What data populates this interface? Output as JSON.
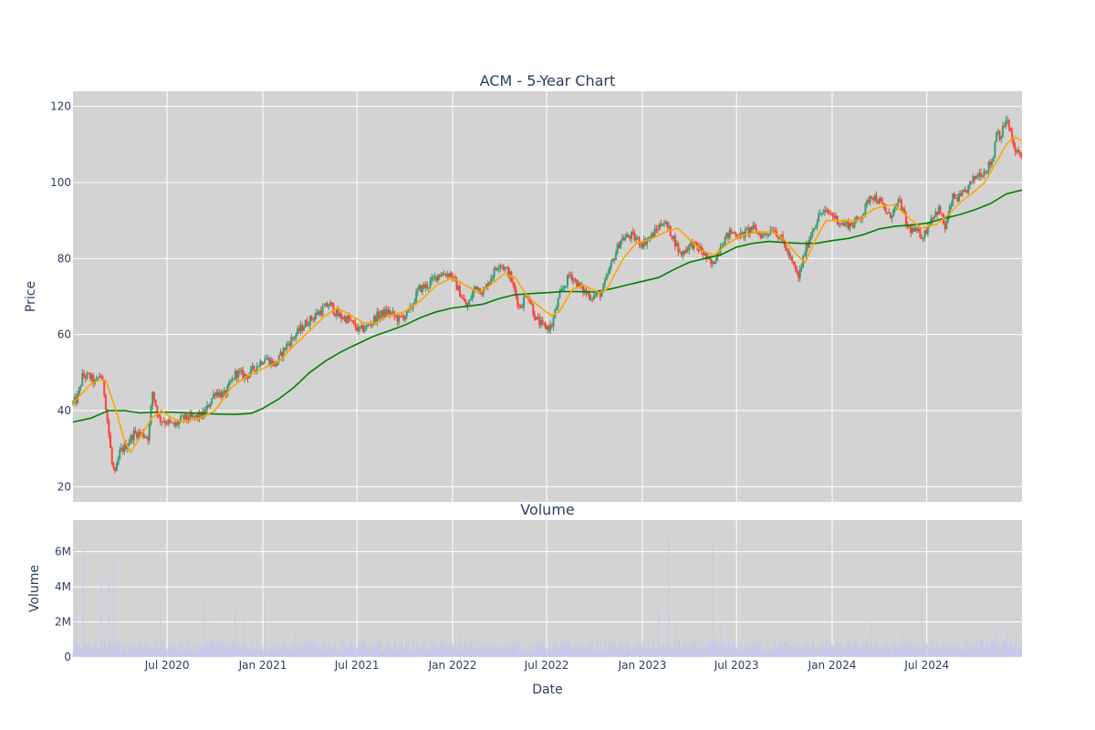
{
  "chart_data": [
    {
      "type": "candlestick",
      "title": "ACM - 5-Year Chart",
      "ylabel": "Price",
      "ylim": [
        16,
        124
      ],
      "yticks": [
        20,
        40,
        60,
        80,
        100,
        120
      ],
      "xlim": [
        "2020-01-02",
        "2024-12-31"
      ],
      "grid": true,
      "colors": {
        "background": "#d3d3d3",
        "increasing": "#3d9970",
        "decreasing": "#ff4136",
        "ma_short": "#ffa500",
        "ma_long": "#008000"
      },
      "price_path": [
        [
          "2020-01-02",
          42
        ],
        [
          "2020-01-10",
          43
        ],
        [
          "2020-01-20",
          49
        ],
        [
          "2020-02-03",
          49
        ],
        [
          "2020-02-14",
          47
        ],
        [
          "2020-02-24",
          50
        ],
        [
          "2020-03-03",
          44
        ],
        [
          "2020-03-10",
          35
        ],
        [
          "2020-03-17",
          26
        ],
        [
          "2020-03-23",
          23
        ],
        [
          "2020-04-01",
          29
        ],
        [
          "2020-04-14",
          31
        ],
        [
          "2020-04-28",
          34
        ],
        [
          "2020-05-12",
          34
        ],
        [
          "2020-05-26",
          33
        ],
        [
          "2020-06-03",
          45
        ],
        [
          "2020-06-15",
          38
        ],
        [
          "2020-06-30",
          37
        ],
        [
          "2020-07-15",
          36
        ],
        [
          "2020-08-01",
          38
        ],
        [
          "2020-08-20",
          38
        ],
        [
          "2020-09-10",
          39
        ],
        [
          "2020-10-01",
          45
        ],
        [
          "2020-10-20",
          44
        ],
        [
          "2020-11-10",
          50
        ],
        [
          "2020-11-30",
          49
        ],
        [
          "2020-12-15",
          51
        ],
        [
          "2021-01-05",
          54
        ],
        [
          "2021-01-25",
          52
        ],
        [
          "2021-02-15",
          57
        ],
        [
          "2021-03-05",
          60
        ],
        [
          "2021-03-25",
          63
        ],
        [
          "2021-04-20",
          66
        ],
        [
          "2021-05-10",
          68
        ],
        [
          "2021-05-25",
          65
        ],
        [
          "2021-06-15",
          64
        ],
        [
          "2021-07-05",
          61
        ],
        [
          "2021-07-20",
          62
        ],
        [
          "2021-08-10",
          65
        ],
        [
          "2021-08-30",
          66
        ],
        [
          "2021-09-20",
          64
        ],
        [
          "2021-10-10",
          66
        ],
        [
          "2021-10-28",
          72
        ],
        [
          "2021-11-15",
          73
        ],
        [
          "2021-12-05",
          76
        ],
        [
          "2021-12-28",
          76
        ],
        [
          "2022-01-15",
          71
        ],
        [
          "2022-01-28",
          67
        ],
        [
          "2022-02-15",
          73
        ],
        [
          "2022-03-01",
          71
        ],
        [
          "2022-03-15",
          75
        ],
        [
          "2022-04-01",
          79
        ],
        [
          "2022-04-20",
          76
        ],
        [
          "2022-05-10",
          67
        ],
        [
          "2022-05-25",
          71
        ],
        [
          "2022-06-10",
          64
        ],
        [
          "2022-06-25",
          62
        ],
        [
          "2022-07-10",
          62
        ],
        [
          "2022-07-25",
          70
        ],
        [
          "2022-08-15",
          76
        ],
        [
          "2022-09-05",
          72
        ],
        [
          "2022-09-25",
          70
        ],
        [
          "2022-10-15",
          71
        ],
        [
          "2022-11-01",
          78
        ],
        [
          "2022-11-20",
          85
        ],
        [
          "2022-12-10",
          86
        ],
        [
          "2023-01-01",
          84
        ],
        [
          "2023-01-20",
          86
        ],
        [
          "2023-02-10",
          90
        ],
        [
          "2023-02-28",
          86
        ],
        [
          "2023-03-15",
          81
        ],
        [
          "2023-04-05",
          84
        ],
        [
          "2023-04-25",
          82
        ],
        [
          "2023-05-15",
          78
        ],
        [
          "2023-06-01",
          84
        ],
        [
          "2023-06-20",
          87
        ],
        [
          "2023-07-10",
          86
        ],
        [
          "2023-07-30",
          88
        ],
        [
          "2023-08-20",
          86
        ],
        [
          "2023-09-10",
          88
        ],
        [
          "2023-09-30",
          84
        ],
        [
          "2023-10-15",
          79
        ],
        [
          "2023-10-28",
          75
        ],
        [
          "2023-11-10",
          82
        ],
        [
          "2023-11-25",
          88
        ],
        [
          "2023-12-10",
          92
        ],
        [
          "2023-12-28",
          92
        ],
        [
          "2024-01-20",
          89
        ],
        [
          "2024-02-10",
          89
        ],
        [
          "2024-03-01",
          92
        ],
        [
          "2024-03-15",
          97
        ],
        [
          "2024-04-01",
          95
        ],
        [
          "2024-04-20",
          91
        ],
        [
          "2024-05-10",
          95
        ],
        [
          "2024-05-25",
          88
        ],
        [
          "2024-06-10",
          87
        ],
        [
          "2024-06-25",
          86
        ],
        [
          "2024-07-10",
          91
        ],
        [
          "2024-07-25",
          93
        ],
        [
          "2024-08-05",
          88
        ],
        [
          "2024-08-20",
          96
        ],
        [
          "2024-09-05",
          96
        ],
        [
          "2024-09-20",
          99
        ],
        [
          "2024-10-05",
          102
        ],
        [
          "2024-10-20",
          103
        ],
        [
          "2024-11-05",
          106
        ],
        [
          "2024-11-12",
          114
        ],
        [
          "2024-11-20",
          112
        ],
        [
          "2024-12-01",
          117
        ],
        [
          "2024-12-10",
          112
        ],
        [
          "2024-12-18",
          108
        ],
        [
          "2024-12-31",
          107
        ]
      ],
      "ma_short_path": [
        [
          "2020-01-02",
          42
        ],
        [
          "2020-02-05",
          47
        ],
        [
          "2020-02-20",
          48
        ],
        [
          "2020-03-05",
          48
        ],
        [
          "2020-03-25",
          40
        ],
        [
          "2020-04-10",
          32
        ],
        [
          "2020-04-22",
          29
        ],
        [
          "2020-05-10",
          33
        ],
        [
          "2020-06-01",
          38
        ],
        [
          "2020-06-20",
          40
        ],
        [
          "2020-07-10",
          38
        ],
        [
          "2020-08-01",
          37
        ],
        [
          "2020-09-01",
          38
        ],
        [
          "2020-10-01",
          40
        ],
        [
          "2020-11-01",
          46
        ],
        [
          "2020-12-01",
          49
        ],
        [
          "2021-01-01",
          51
        ],
        [
          "2021-02-01",
          53
        ],
        [
          "2021-03-01",
          57
        ],
        [
          "2021-04-01",
          61
        ],
        [
          "2021-05-01",
          65
        ],
        [
          "2021-05-25",
          67
        ],
        [
          "2021-06-20",
          65
        ],
        [
          "2021-07-15",
          63
        ],
        [
          "2021-08-05",
          63
        ],
        [
          "2021-09-01",
          65
        ],
        [
          "2021-10-01",
          66
        ],
        [
          "2021-11-01",
          69
        ],
        [
          "2021-12-01",
          73
        ],
        [
          "2022-01-01",
          75
        ],
        [
          "2022-01-25",
          73
        ],
        [
          "2022-02-20",
          71
        ],
        [
          "2022-03-15",
          73
        ],
        [
          "2022-04-10",
          76
        ],
        [
          "2022-05-01",
          75
        ],
        [
          "2022-05-25",
          70
        ],
        [
          "2022-06-20",
          67
        ],
        [
          "2022-07-10",
          65
        ],
        [
          "2022-07-25",
          66
        ],
        [
          "2022-08-20",
          72
        ],
        [
          "2022-09-10",
          73
        ],
        [
          "2022-10-10",
          71
        ],
        [
          "2022-10-25",
          72
        ],
        [
          "2022-11-25",
          80
        ],
        [
          "2022-12-20",
          84
        ],
        [
          "2023-01-15",
          85
        ],
        [
          "2023-02-15",
          87
        ],
        [
          "2023-03-10",
          88
        ],
        [
          "2023-04-01",
          85
        ],
        [
          "2023-04-25",
          82
        ],
        [
          "2023-05-20",
          81
        ],
        [
          "2023-06-15",
          84
        ],
        [
          "2023-07-10",
          86
        ],
        [
          "2023-08-10",
          87
        ],
        [
          "2023-09-10",
          87
        ],
        [
          "2023-10-01",
          85
        ],
        [
          "2023-10-25",
          81
        ],
        [
          "2023-11-10",
          79
        ],
        [
          "2023-11-30",
          85
        ],
        [
          "2023-12-20",
          90
        ],
        [
          "2024-01-20",
          90
        ],
        [
          "2024-02-20",
          90
        ],
        [
          "2024-03-20",
          93
        ],
        [
          "2024-04-15",
          94
        ],
        [
          "2024-05-01",
          94
        ],
        [
          "2024-05-25",
          91
        ],
        [
          "2024-06-20",
          88
        ],
        [
          "2024-07-20",
          89
        ],
        [
          "2024-08-15",
          92
        ],
        [
          "2024-09-05",
          95
        ],
        [
          "2024-09-25",
          97
        ],
        [
          "2024-10-20",
          100
        ],
        [
          "2024-11-10",
          105
        ],
        [
          "2024-12-01",
          110
        ],
        [
          "2024-12-15",
          112
        ],
        [
          "2024-12-31",
          111
        ]
      ],
      "ma_long_path": [
        [
          "2020-01-02",
          37
        ],
        [
          "2020-02-05",
          38
        ],
        [
          "2020-03-10",
          40
        ],
        [
          "2020-04-10",
          40
        ],
        [
          "2020-05-10",
          39.4
        ],
        [
          "2020-06-10",
          39.6
        ],
        [
          "2020-07-10",
          39.6
        ],
        [
          "2020-08-10",
          39.4
        ],
        [
          "2020-09-10",
          39.2
        ],
        [
          "2020-10-10",
          39.1
        ],
        [
          "2020-11-10",
          39
        ],
        [
          "2020-12-10",
          39.3
        ],
        [
          "2020-12-31",
          40.5
        ],
        [
          "2021-01-31",
          43
        ],
        [
          "2021-03-01",
          46
        ],
        [
          "2021-04-01",
          50
        ],
        [
          "2021-05-01",
          53
        ],
        [
          "2021-06-01",
          55.5
        ],
        [
          "2021-07-01",
          57.5
        ],
        [
          "2021-08-01",
          59.5
        ],
        [
          "2021-09-01",
          61
        ],
        [
          "2021-10-01",
          62.5
        ],
        [
          "2021-11-01",
          64.5
        ],
        [
          "2021-12-01",
          66
        ],
        [
          "2022-01-01",
          67
        ],
        [
          "2022-02-01",
          67.5
        ],
        [
          "2022-03-01",
          68
        ],
        [
          "2022-04-01",
          69.5
        ],
        [
          "2022-05-01",
          70.5
        ],
        [
          "2022-06-01",
          70.8
        ],
        [
          "2022-07-01",
          71
        ],
        [
          "2022-08-01",
          71.3
        ],
        [
          "2022-09-01",
          71.3
        ],
        [
          "2022-10-01",
          71.2
        ],
        [
          "2022-11-01",
          72
        ],
        [
          "2022-12-01",
          73
        ],
        [
          "2023-01-01",
          74
        ],
        [
          "2023-02-01",
          75
        ],
        [
          "2023-03-01",
          77
        ],
        [
          "2023-04-01",
          79
        ],
        [
          "2023-05-01",
          80
        ],
        [
          "2023-06-01",
          81
        ],
        [
          "2023-07-01",
          83
        ],
        [
          "2023-08-01",
          84
        ],
        [
          "2023-09-01",
          84.5
        ],
        [
          "2023-10-01",
          84.2
        ],
        [
          "2023-11-01",
          84
        ],
        [
          "2023-12-01",
          84
        ],
        [
          "2024-01-01",
          84.7
        ],
        [
          "2024-02-01",
          85.3
        ],
        [
          "2024-03-01",
          86.3
        ],
        [
          "2024-04-01",
          87.8
        ],
        [
          "2024-05-01",
          88.5
        ],
        [
          "2024-06-01",
          88.8
        ],
        [
          "2024-07-01",
          89.3
        ],
        [
          "2024-08-01",
          90.5
        ],
        [
          "2024-09-01",
          91.5
        ],
        [
          "2024-10-01",
          92.8
        ],
        [
          "2024-11-01",
          94.5
        ],
        [
          "2024-12-01",
          97
        ],
        [
          "2024-12-31",
          98
        ]
      ]
    },
    {
      "type": "bar",
      "title": "Volume",
      "xlabel": "Date",
      "ylabel": "Volume",
      "ylim": [
        0,
        7800000
      ],
      "yticks": [
        0,
        2000000,
        4000000,
        6000000
      ],
      "ytick_labels": [
        "0",
        "2M",
        "4M",
        "6M"
      ],
      "x_ticks": [
        "2020-07-01",
        "2021-01-01",
        "2021-07-01",
        "2022-01-01",
        "2022-07-01",
        "2023-01-01",
        "2023-07-01",
        "2024-01-01",
        "2024-07-01"
      ],
      "x_tick_labels": [
        "Jul 2020",
        "Jan 2021",
        "Jul 2021",
        "Jan 2022",
        "Jul 2022",
        "Jan 2023",
        "Jul 2023",
        "Jan 2024",
        "Jul 2024"
      ],
      "color": "#c6c7ec",
      "baseline_volume": 800000,
      "spikes": [
        [
          "2020-01-08",
          2800000
        ],
        [
          "2020-01-22",
          6100000
        ],
        [
          "2020-02-10",
          2600000
        ],
        [
          "2020-02-25",
          4700000
        ],
        [
          "2020-03-05",
          6300000
        ],
        [
          "2020-03-12",
          4800000
        ],
        [
          "2020-03-20",
          5500000
        ],
        [
          "2020-03-27",
          5100000
        ],
        [
          "2020-04-06",
          3800000
        ],
        [
          "2020-04-20",
          2500000
        ],
        [
          "2020-05-06",
          2200000
        ],
        [
          "2020-05-20",
          2400000
        ],
        [
          "2020-06-03",
          5000000
        ],
        [
          "2020-06-18",
          3100000
        ],
        [
          "2020-07-01",
          2300000
        ],
        [
          "2020-08-12",
          1200000
        ],
        [
          "2020-09-10",
          3300000
        ],
        [
          "2020-09-28",
          2000000
        ],
        [
          "2020-10-15",
          2800000
        ],
        [
          "2020-11-09",
          2900000
        ],
        [
          "2020-11-25",
          2200000
        ],
        [
          "2020-12-10",
          2800000
        ],
        [
          "2020-12-18",
          3300000
        ],
        [
          "2021-01-06",
          3400000
        ],
        [
          "2021-02-10",
          2000000
        ],
        [
          "2021-03-05",
          1500000
        ],
        [
          "2021-04-15",
          1800000
        ],
        [
          "2021-06-10",
          1200000
        ],
        [
          "2021-09-01",
          1200000
        ],
        [
          "2021-10-20",
          2400000
        ],
        [
          "2021-12-01",
          1800000
        ],
        [
          "2022-01-15",
          1400000
        ],
        [
          "2022-02-15",
          1700000
        ],
        [
          "2022-05-10",
          1500000
        ],
        [
          "2022-08-01",
          1300000
        ],
        [
          "2022-09-05",
          2300000
        ],
        [
          "2022-11-01",
          1300000
        ],
        [
          "2022-12-16",
          1800000
        ],
        [
          "2023-02-01",
          3000000
        ],
        [
          "2023-02-21",
          7300000
        ],
        [
          "2023-03-05",
          2000000
        ],
        [
          "2023-05-16",
          6500000
        ],
        [
          "2023-06-01",
          2000000
        ],
        [
          "2023-08-10",
          1500000
        ],
        [
          "2023-11-15",
          1700000
        ],
        [
          "2024-02-15",
          1800000
        ],
        [
          "2024-03-15",
          2000000
        ],
        [
          "2024-05-14",
          1800000
        ],
        [
          "2024-06-21",
          3700000
        ],
        [
          "2024-09-20",
          2100000
        ],
        [
          "2024-11-12",
          1300000
        ],
        [
          "2024-12-02",
          1700000
        ],
        [
          "2024-12-20",
          1400000
        ]
      ]
    }
  ]
}
